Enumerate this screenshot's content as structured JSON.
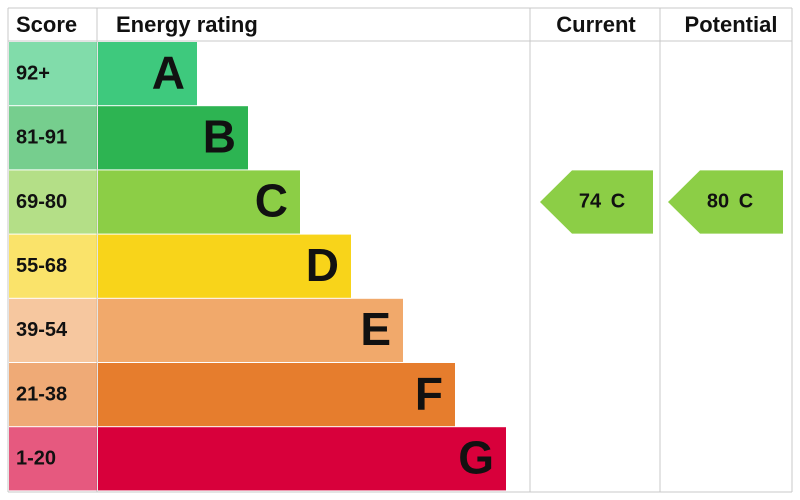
{
  "header": {
    "score": "Score",
    "rating": "Energy rating",
    "current": "Current",
    "potential": "Potential"
  },
  "rows": [
    {
      "score": "92+",
      "letter": "A",
      "color": "#3ec97d"
    },
    {
      "score": "81-91",
      "letter": "B",
      "color": "#2db452"
    },
    {
      "score": "69-80",
      "letter": "C",
      "color": "#8cce46"
    },
    {
      "score": "55-68",
      "letter": "D",
      "color": "#f8d41a"
    },
    {
      "score": "39-54",
      "letter": "E",
      "color": "#f1a96b"
    },
    {
      "score": "21-38",
      "letter": "F",
      "color": "#e67d2d"
    },
    {
      "score": "1-20",
      "letter": "G",
      "color": "#d8003b"
    }
  ],
  "current": {
    "score": 74,
    "band": "C"
  },
  "potential": {
    "score": 80,
    "band": "C"
  }
}
